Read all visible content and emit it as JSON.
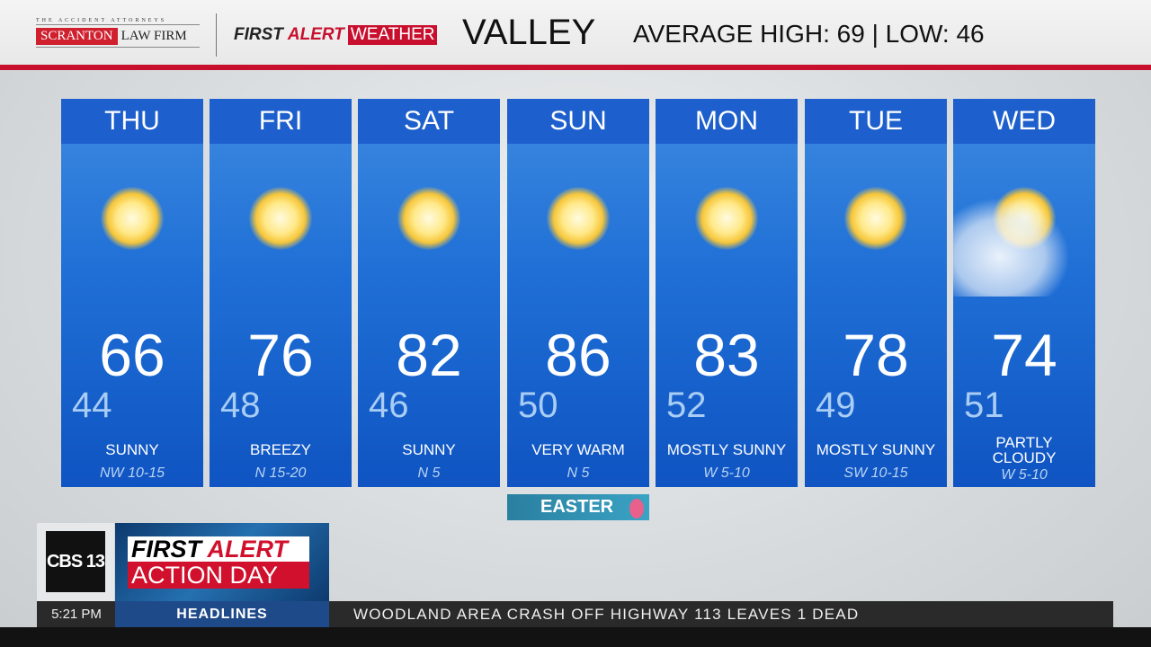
{
  "header": {
    "sponsor": {
      "tagline": "THE ACCIDENT ATTORNEYS",
      "name_red": "SCRANTON",
      "name_rest": "LAW FIRM"
    },
    "brand": {
      "first": "FIRST",
      "alert": "ALERT",
      "weather": "WEATHER"
    },
    "region": "VALLEY",
    "averages": "AVERAGE HIGH: 69 | LOW: 46"
  },
  "colors": {
    "accent_red": "#c8102e",
    "card_blue": "#1f6fd6"
  },
  "forecast": [
    {
      "day": "THU",
      "icon": "sun-icon",
      "high": "66",
      "low": "44",
      "condition": "SUNNY",
      "wind": "NW 10-15"
    },
    {
      "day": "FRI",
      "icon": "sun-icon",
      "high": "76",
      "low": "48",
      "condition": "BREEZY",
      "wind": "N 15-20"
    },
    {
      "day": "SAT",
      "icon": "sun-icon",
      "high": "82",
      "low": "46",
      "condition": "SUNNY",
      "wind": "N 5"
    },
    {
      "day": "SUN",
      "icon": "sun-icon",
      "high": "86",
      "low": "50",
      "condition": "VERY WARM",
      "wind": "N 5"
    },
    {
      "day": "MON",
      "icon": "sun-icon",
      "high": "83",
      "low": "52",
      "condition": "MOSTLY SUNNY",
      "wind": "W 5-10"
    },
    {
      "day": "TUE",
      "icon": "sun-icon",
      "high": "78",
      "low": "49",
      "condition": "MOSTLY SUNNY",
      "wind": "SW 10-15"
    },
    {
      "day": "WED",
      "icon": "partly-cloudy-icon",
      "high": "74",
      "low": "51",
      "condition": "PARTLY CLOUDY",
      "wind": "W 5-10"
    }
  ],
  "holiday": "EASTER",
  "station": {
    "logo": "CBS 13",
    "alert_line1_a": "FIRST",
    "alert_line1_b": "ALERT",
    "alert_line2": "ACTION DAY"
  },
  "ticker": {
    "time": "5:21 PM",
    "label": "HEADLINES",
    "headline": "WOODLAND AREA CRASH OFF HIGHWAY 113 LEAVES 1 DEAD"
  }
}
